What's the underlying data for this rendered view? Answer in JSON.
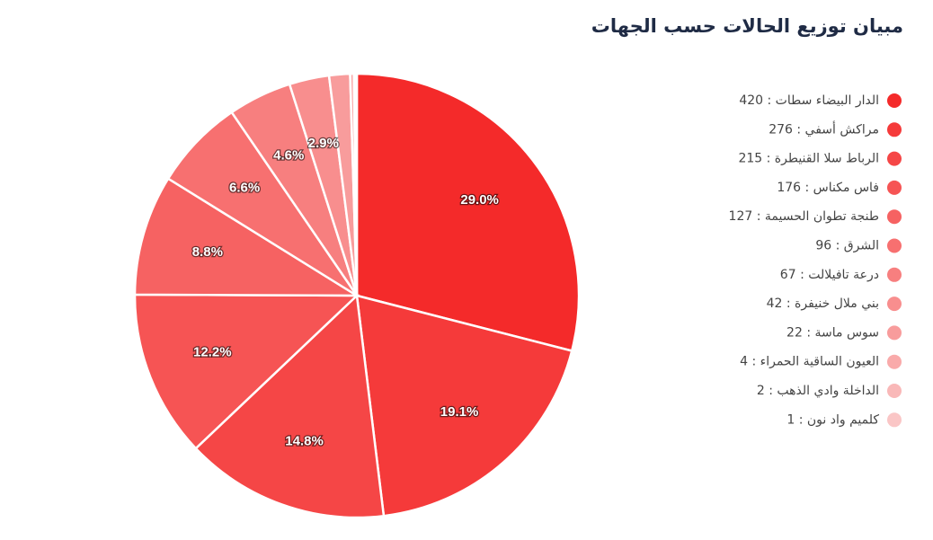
{
  "chart_data": {
    "type": "pie",
    "title": "مبيان توزيع الحالات حسب الجهات",
    "categories": [
      "الدار البيضاء سطات : 420",
      "مراكش أسفي : 276",
      "الرباط سلا القنيطرة : 215",
      "فاس مكناس : 176",
      "طنجة تطوان الحسيمة : 127",
      "الشرق : 96",
      "درعة تافيلالت : 67",
      "بني ملال خنيفرة : 42",
      "سوس ماسة : 22",
      "العيون الساقية الحمراء : 4",
      "الداخلة وادي الذهب : 2",
      "كلميم واد نون : 1"
    ],
    "values": [
      420,
      276,
      215,
      176,
      127,
      96,
      67,
      42,
      22,
      4,
      2,
      1
    ],
    "percent_labels": [
      "29.0%",
      "19.1%",
      "14.8%",
      "12.2%",
      "8.8%",
      "6.6%",
      "4.6%",
      "2.9%",
      null,
      null,
      null,
      null
    ],
    "colors": [
      "#f42a2a",
      "#f53a3a",
      "#f54646",
      "#f65454",
      "#f66262",
      "#f77070",
      "#f77f7f",
      "#f88e8e",
      "#f89c9c",
      "#f9aaaa",
      "#f9b8b8",
      "#fac6c6"
    ]
  }
}
